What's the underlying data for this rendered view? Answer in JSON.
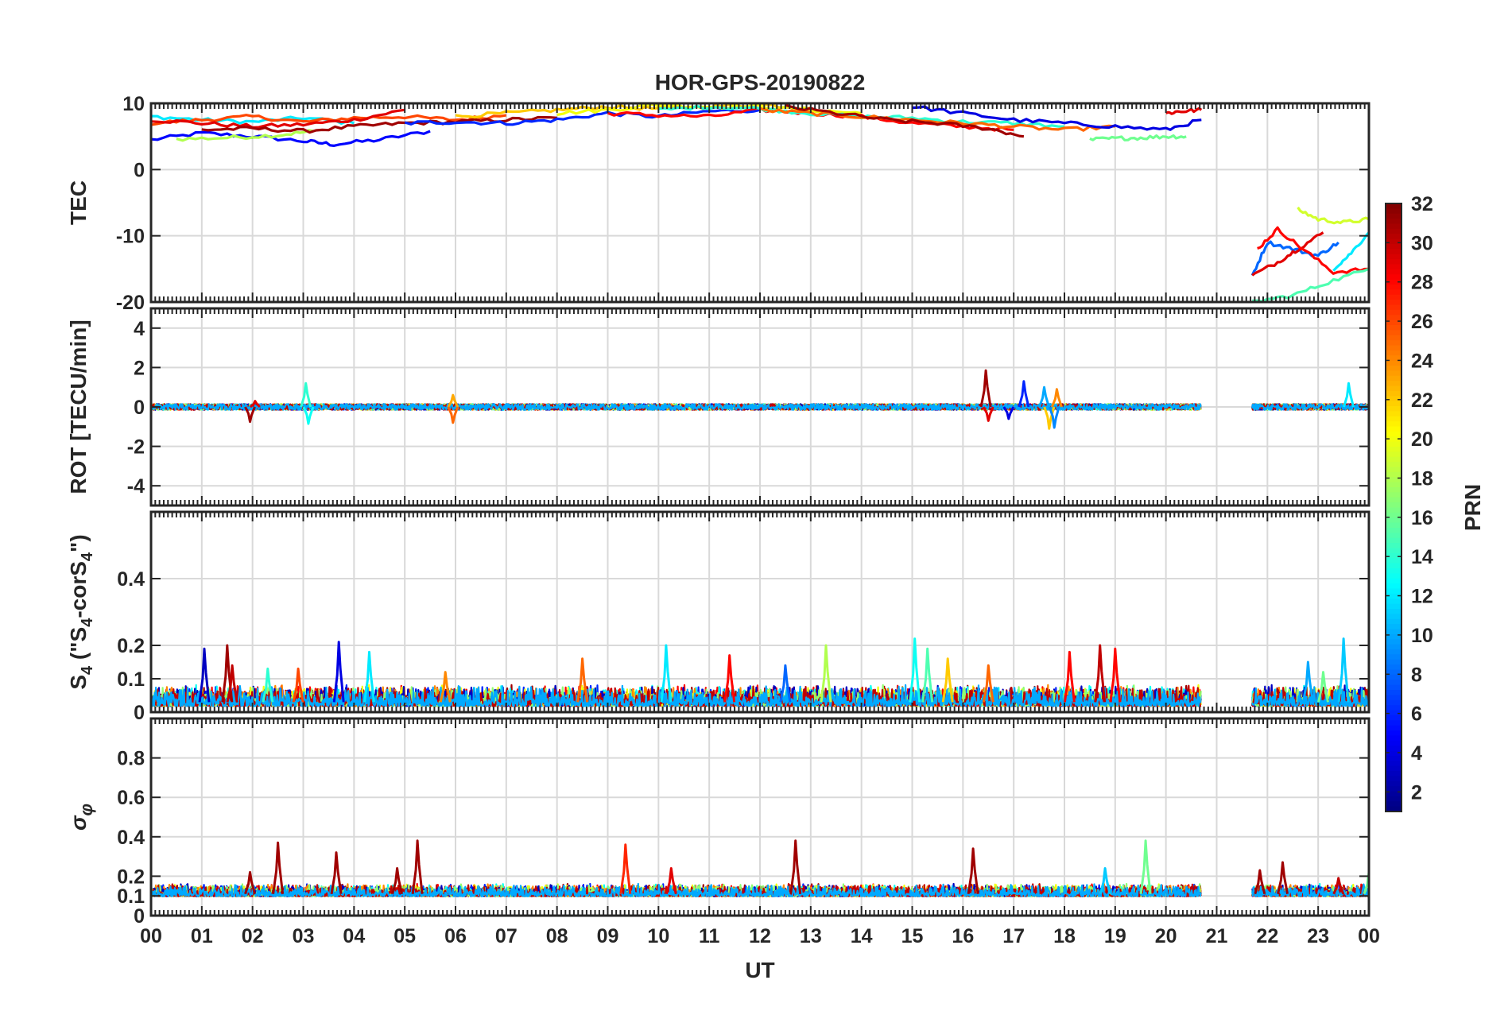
{
  "chart_data": {
    "type": "line",
    "title": "HOR-GPS-20190822",
    "xlabel": "UT",
    "x_tick_labels": [
      "00",
      "01",
      "02",
      "03",
      "04",
      "05",
      "06",
      "07",
      "08",
      "09",
      "10",
      "11",
      "12",
      "13",
      "14",
      "15",
      "16",
      "17",
      "18",
      "19",
      "20",
      "21",
      "22",
      "23",
      "00"
    ],
    "xlim": [
      0,
      24
    ],
    "grid": true,
    "panels": [
      {
        "id": "tec",
        "ylabel": "TEC",
        "ylim": [
          -20,
          10
        ],
        "yticks": [
          -20,
          -10,
          0,
          10
        ],
        "ytick_labels": [
          "-20",
          "-10",
          "0",
          "10"
        ],
        "data_coverage_hours": [
          [
            0,
            20.7
          ],
          [
            21.7,
            24
          ]
        ],
        "series": [
          {
            "prn": 5,
            "x": [
              0,
              1,
              2,
              3,
              3.6,
              4.5,
              5.5
            ],
            "y": [
              4.5,
              5.5,
              5,
              4.3,
              3.8,
              4.5,
              5.8
            ]
          },
          {
            "prn": 18,
            "x": [
              0.5,
              1.5,
              2.5,
              3.2
            ],
            "y": [
              4.6,
              4.8,
              5.2,
              5.8
            ]
          },
          {
            "prn": 12,
            "x": [
              0,
              1,
              2,
              3,
              4
            ],
            "y": [
              8,
              7.5,
              7.2,
              7.8,
              7
            ]
          },
          {
            "prn": 26,
            "x": [
              0,
              1,
              2,
              3,
              4,
              5,
              6,
              7
            ],
            "y": [
              7,
              7.5,
              8,
              7.2,
              7.8,
              8,
              7.5,
              8.2
            ]
          },
          {
            "prn": 29,
            "x": [
              0,
              1,
              2,
              3,
              4,
              5
            ],
            "y": [
              7.5,
              7,
              6.5,
              6.8,
              7.5,
              9
            ]
          },
          {
            "prn": 31,
            "x": [
              1,
              2,
              3,
              4,
              5,
              6,
              7,
              8
            ],
            "y": [
              6,
              6.2,
              5.8,
              6.5,
              7,
              7.2,
              7.5,
              7.8
            ]
          },
          {
            "prn": 6,
            "x": [
              5,
              6,
              7,
              8,
              9,
              10,
              11,
              12
            ],
            "y": [
              7,
              7.2,
              7,
              7.5,
              8.5,
              8,
              8.8,
              9
            ]
          },
          {
            "prn": 22,
            "x": [
              6,
              7,
              8,
              9,
              10,
              11,
              12,
              13
            ],
            "y": [
              8,
              8.5,
              9,
              9.5,
              9.2,
              9.5,
              9.8,
              9.3
            ]
          },
          {
            "prn": 20,
            "x": [
              8,
              9,
              10,
              11,
              12,
              13,
              14
            ],
            "y": [
              8.5,
              9,
              9.8,
              9.5,
              9.5,
              9,
              8.5
            ]
          },
          {
            "prn": 28,
            "x": [
              9,
              10,
              11,
              12,
              13,
              14,
              15,
              16,
              17
            ],
            "y": [
              8.5,
              8.2,
              8,
              9,
              8.5,
              8,
              7,
              6.5,
              6
            ]
          },
          {
            "prn": 14,
            "x": [
              10,
              11,
              12,
              13,
              14,
              15,
              16,
              17,
              18
            ],
            "y": [
              9,
              9.5,
              9.2,
              8.5,
              8,
              7.8,
              7.2,
              7,
              6.5
            ]
          },
          {
            "prn": 25,
            "x": [
              12,
              13,
              14,
              15,
              16,
              17,
              18,
              19
            ],
            "y": [
              9,
              8.5,
              8,
              7.5,
              7,
              6.5,
              6,
              6.5
            ]
          },
          {
            "prn": 31,
            "x": [
              12.5,
              13.5,
              14.5,
              15.5,
              16.5,
              17.2
            ],
            "y": [
              9.5,
              8.5,
              7.5,
              7,
              6.2,
              5
            ]
          },
          {
            "prn": 4,
            "x": [
              15,
              16,
              17,
              18,
              19,
              20,
              20.7
            ],
            "y": [
              9.5,
              8.5,
              7.5,
              7,
              6.5,
              6,
              7.5
            ]
          },
          {
            "prn": 16,
            "x": [
              18.5,
              19,
              19.5,
              20,
              20.4
            ],
            "y": [
              4.5,
              4.7,
              4.8,
              5,
              5
            ]
          },
          {
            "prn": 29,
            "x": [
              20,
              20.3,
              20.7
            ],
            "y": [
              8.5,
              8.8,
              9
            ]
          },
          {
            "prn": 8,
            "x": [
              21.7,
              22,
              22.5,
              23,
              23.4
            ],
            "y": [
              -16,
              -11,
              -12,
              -13,
              -11
            ]
          },
          {
            "prn": 29,
            "x": [
              21.7,
              22.2,
              22.6,
              23.1
            ],
            "y": [
              -16,
              -14,
              -12,
              -9.5
            ]
          },
          {
            "prn": 28,
            "x": [
              21.8,
              22.2,
              22.7,
              23.3,
              24
            ],
            "y": [
              -12,
              -9,
              -12,
              -15.5,
              -15
            ]
          },
          {
            "prn": 19,
            "x": [
              22.6,
              23,
              23.5,
              24
            ],
            "y": [
              -6,
              -7.5,
              -8,
              -7.5
            ]
          },
          {
            "prn": 15,
            "x": [
              21.7,
              22.5,
              23.2,
              24
            ],
            "y": [
              -20,
              -19,
              -17,
              -15
            ]
          },
          {
            "prn": 12,
            "x": [
              23.3,
              23.6,
              24
            ],
            "y": [
              -15,
              -13,
              -9.5
            ]
          }
        ]
      },
      {
        "id": "rot",
        "ylabel": "ROT [TECU/min]",
        "ylim": [
          -5,
          5
        ],
        "yticks": [
          -4,
          -2,
          0,
          2,
          4
        ],
        "ytick_labels": [
          "-4",
          "-2",
          "0",
          "2",
          "4"
        ],
        "data_coverage_hours": [
          [
            0,
            20.7
          ],
          [
            21.7,
            24
          ]
        ],
        "baseline": 0,
        "noise_amplitude": 0.15,
        "spikes": [
          {
            "x": 1.95,
            "y": -0.75,
            "prn": 31
          },
          {
            "x": 2.05,
            "y": 0.3,
            "prn": 29
          },
          {
            "x": 3.05,
            "y": 1.2,
            "prn": 14
          },
          {
            "x": 3.1,
            "y": -0.85,
            "prn": 13
          },
          {
            "x": 5.95,
            "y": 0.6,
            "prn": 23
          },
          {
            "x": 5.95,
            "y": -0.8,
            "prn": 25
          },
          {
            "x": 16.45,
            "y": 1.85,
            "prn": 31
          },
          {
            "x": 16.5,
            "y": -0.7,
            "prn": 29
          },
          {
            "x": 16.9,
            "y": -0.6,
            "prn": 4
          },
          {
            "x": 17.2,
            "y": 1.3,
            "prn": 6
          },
          {
            "x": 17.6,
            "y": 1.0,
            "prn": 10
          },
          {
            "x": 17.7,
            "y": -1.1,
            "prn": 22
          },
          {
            "x": 17.8,
            "y": -1.05,
            "prn": 9
          },
          {
            "x": 17.85,
            "y": 0.9,
            "prn": 24
          },
          {
            "x": 23.6,
            "y": 1.2,
            "prn": 12
          }
        ]
      },
      {
        "id": "s4",
        "ylabel": "S4 (\"S4-corS4\")",
        "ylim": [
          0,
          0.6
        ],
        "yticks": [
          0,
          0.1,
          0.2,
          0.4
        ],
        "ytick_labels": [
          "0",
          "0.1",
          "0.2",
          "0.4"
        ],
        "data_coverage_hours": [
          [
            0,
            20.7
          ],
          [
            21.7,
            24
          ]
        ],
        "baseline": 0.03,
        "noise_amplitude": 0.04,
        "spikes": [
          {
            "x": 1.05,
            "y": 0.19,
            "prn": 3
          },
          {
            "x": 1.5,
            "y": 0.2,
            "prn": 31
          },
          {
            "x": 1.6,
            "y": 0.14,
            "prn": 30
          },
          {
            "x": 2.3,
            "y": 0.13,
            "prn": 14
          },
          {
            "x": 2.9,
            "y": 0.13,
            "prn": 26
          },
          {
            "x": 3.7,
            "y": 0.21,
            "prn": 4
          },
          {
            "x": 4.3,
            "y": 0.18,
            "prn": 12
          },
          {
            "x": 5.8,
            "y": 0.12,
            "prn": 24
          },
          {
            "x": 8.5,
            "y": 0.16,
            "prn": 25
          },
          {
            "x": 10.15,
            "y": 0.2,
            "prn": 12
          },
          {
            "x": 11.4,
            "y": 0.17,
            "prn": 28
          },
          {
            "x": 12.5,
            "y": 0.14,
            "prn": 8
          },
          {
            "x": 13.3,
            "y": 0.2,
            "prn": 18
          },
          {
            "x": 15.05,
            "y": 0.22,
            "prn": 13
          },
          {
            "x": 15.3,
            "y": 0.19,
            "prn": 15
          },
          {
            "x": 15.7,
            "y": 0.16,
            "prn": 22
          },
          {
            "x": 16.5,
            "y": 0.14,
            "prn": 25
          },
          {
            "x": 18.1,
            "y": 0.18,
            "prn": 28
          },
          {
            "x": 18.7,
            "y": 0.2,
            "prn": 30
          },
          {
            "x": 19.0,
            "y": 0.19,
            "prn": 28
          },
          {
            "x": 22.8,
            "y": 0.15,
            "prn": 10
          },
          {
            "x": 23.1,
            "y": 0.12,
            "prn": 16
          },
          {
            "x": 23.5,
            "y": 0.22,
            "prn": 11
          }
        ]
      },
      {
        "id": "sigma_phi",
        "ylabel": "σφ",
        "ylim": [
          0,
          1
        ],
        "yticks": [
          0,
          0.1,
          0.2,
          0.4,
          0.6,
          0.8
        ],
        "ytick_labels": [
          "0",
          "0.1",
          "0.2",
          "0.4",
          "0.6",
          "0.8"
        ],
        "data_coverage_hours": [
          [
            0,
            20.7
          ],
          [
            21.7,
            24
          ]
        ],
        "baseline": 0.11,
        "noise_amplitude": 0.04,
        "spikes": [
          {
            "x": 1.95,
            "y": 0.22,
            "prn": 31
          },
          {
            "x": 2.5,
            "y": 0.37,
            "prn": 31
          },
          {
            "x": 3.65,
            "y": 0.32,
            "prn": 31
          },
          {
            "x": 4.85,
            "y": 0.24,
            "prn": 31
          },
          {
            "x": 5.25,
            "y": 0.38,
            "prn": 31
          },
          {
            "x": 9.35,
            "y": 0.36,
            "prn": 27
          },
          {
            "x": 10.25,
            "y": 0.24,
            "prn": 29
          },
          {
            "x": 12.7,
            "y": 0.38,
            "prn": 31
          },
          {
            "x": 16.2,
            "y": 0.34,
            "prn": 31
          },
          {
            "x": 18.8,
            "y": 0.24,
            "prn": 11
          },
          {
            "x": 19.6,
            "y": 0.38,
            "prn": 16
          },
          {
            "x": 21.85,
            "y": 0.23,
            "prn": 31
          },
          {
            "x": 22.3,
            "y": 0.27,
            "prn": 31
          },
          {
            "x": 23.4,
            "y": 0.19,
            "prn": 30
          },
          {
            "x": 24.0,
            "y": 0.22,
            "prn": 16
          }
        ]
      }
    ],
    "colorbar": {
      "label": "PRN",
      "colormap": "jet",
      "range": [
        1,
        32
      ],
      "ticks": [
        2,
        4,
        6,
        8,
        10,
        12,
        14,
        16,
        18,
        20,
        22,
        24,
        26,
        28,
        30,
        32
      ],
      "location": "right"
    }
  }
}
